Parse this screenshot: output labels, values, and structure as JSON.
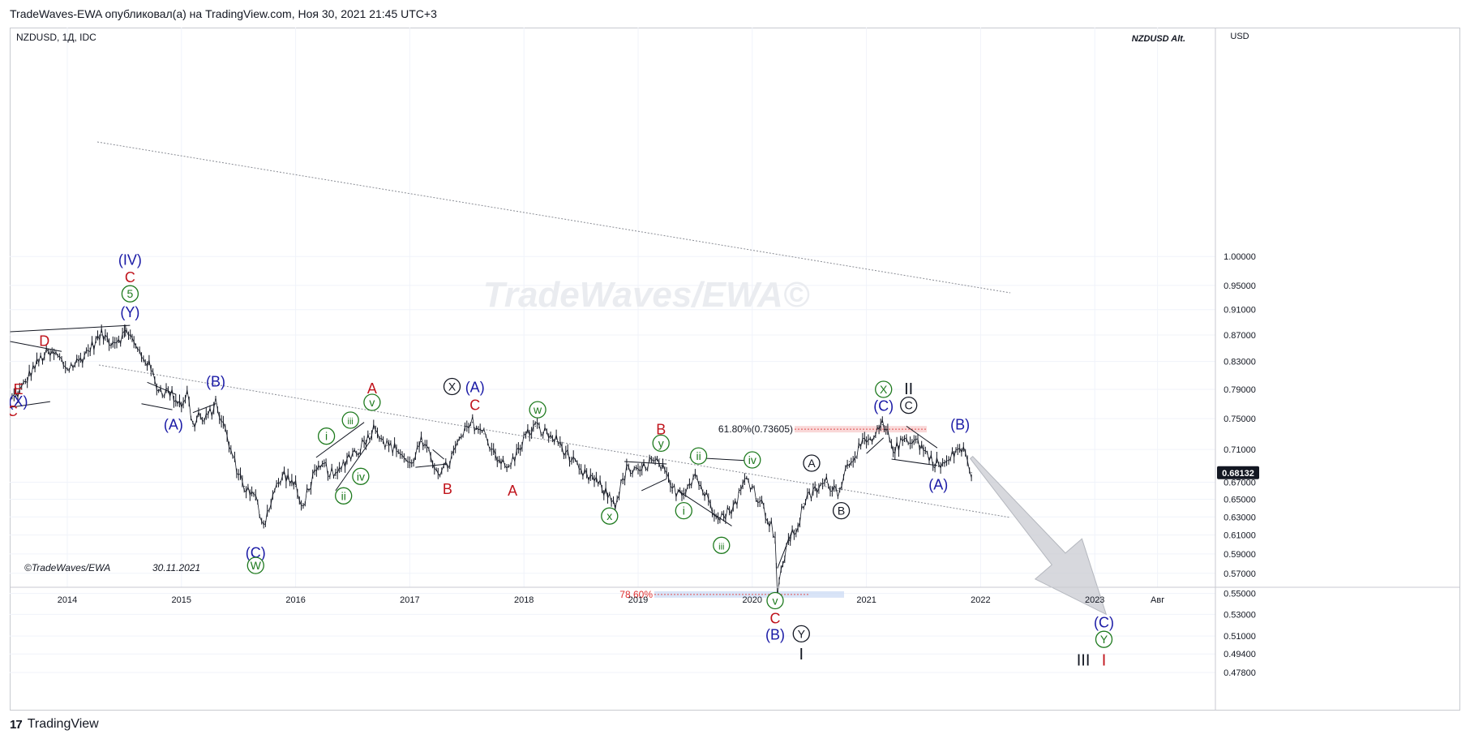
{
  "header": {
    "publisher_line": "TradeWaves-EWA опубликовал(а) на TradingView.com, Ноя 30, 2021 21:45 UTC+3"
  },
  "chart": {
    "symbol_line": "NZDUSD, 1Д, IDC",
    "title_tag": "NZDUSD Alt.",
    "currency": "USD",
    "last_price_label": "0.68132",
    "watermark": "TradeWaves/EWA©",
    "copyright": "©TradeWaves/EWA",
    "date_stamp": "30.11.2021",
    "fib_upper_label": "61.80%(0.73605)",
    "fib_lower_label": "78.60%"
  },
  "footer": {
    "brand": "TradingView",
    "logo_glyph": "17"
  },
  "colors": {
    "blue": "#1a1aa6",
    "red": "#c0141c",
    "green": "#1e7a1e",
    "black": "#131722",
    "grid": "#f0f3fa",
    "price_tag_bg": "#131722",
    "forecast_arrow": "#c9cbd1"
  },
  "chart_data": {
    "type": "line",
    "style": "ohlc-bars",
    "x_axis": {
      "tick_labels": [
        "2014",
        "2015",
        "2016",
        "2017",
        "2018",
        "2019",
        "2020",
        "2021",
        "2022",
        "2023",
        "Авг"
      ],
      "range": [
        2013.5,
        2023.6
      ]
    },
    "y_axis": {
      "scale": "log",
      "tick_labels": [
        "1.00000",
        "0.95000",
        "0.91000",
        "0.87000",
        "0.83000",
        "0.79000",
        "0.75000",
        "0.71000",
        "0.67000",
        "0.65000",
        "0.63000",
        "0.61000",
        "0.59000",
        "0.57000",
        "0.55000",
        "0.53000",
        "0.51000",
        "0.49400",
        "0.47800"
      ],
      "range": [
        0.47,
        1.01
      ]
    },
    "last_price": 0.68132,
    "series": [
      {
        "values": [
          [
            2013.5,
            0.775
          ],
          [
            2013.6,
            0.79
          ],
          [
            2013.7,
            0.82
          ],
          [
            2013.8,
            0.84
          ],
          [
            2013.9,
            0.84
          ],
          [
            2014.0,
            0.82
          ],
          [
            2014.1,
            0.83
          ],
          [
            2014.2,
            0.85
          ],
          [
            2014.3,
            0.87
          ],
          [
            2014.4,
            0.86
          ],
          [
            2014.5,
            0.87
          ],
          [
            2014.52,
            0.88
          ],
          [
            2014.6,
            0.85
          ],
          [
            2014.7,
            0.83
          ],
          [
            2014.8,
            0.79
          ],
          [
            2014.9,
            0.785
          ],
          [
            2015.0,
            0.77
          ],
          [
            2015.05,
            0.785
          ],
          [
            2015.1,
            0.74
          ],
          [
            2015.15,
            0.755
          ],
          [
            2015.2,
            0.745
          ],
          [
            2015.3,
            0.77
          ],
          [
            2015.35,
            0.75
          ],
          [
            2015.45,
            0.7
          ],
          [
            2015.55,
            0.665
          ],
          [
            2015.65,
            0.65
          ],
          [
            2015.72,
            0.622
          ],
          [
            2015.8,
            0.655
          ],
          [
            2015.9,
            0.68
          ],
          [
            2016.0,
            0.665
          ],
          [
            2016.05,
            0.64
          ],
          [
            2016.15,
            0.675
          ],
          [
            2016.25,
            0.69
          ],
          [
            2016.35,
            0.675
          ],
          [
            2016.45,
            0.7
          ],
          [
            2016.55,
            0.71
          ],
          [
            2016.65,
            0.73
          ],
          [
            2016.7,
            0.74
          ],
          [
            2016.8,
            0.715
          ],
          [
            2016.9,
            0.71
          ],
          [
            2017.0,
            0.69
          ],
          [
            2017.1,
            0.72
          ],
          [
            2017.2,
            0.695
          ],
          [
            2017.28,
            0.68
          ],
          [
            2017.35,
            0.695
          ],
          [
            2017.45,
            0.725
          ],
          [
            2017.55,
            0.745
          ],
          [
            2017.65,
            0.73
          ],
          [
            2017.75,
            0.705
          ],
          [
            2017.85,
            0.685
          ],
          [
            2017.92,
            0.7
          ],
          [
            2018.0,
            0.725
          ],
          [
            2018.1,
            0.74
          ],
          [
            2018.2,
            0.73
          ],
          [
            2018.3,
            0.72
          ],
          [
            2018.4,
            0.7
          ],
          [
            2018.5,
            0.68
          ],
          [
            2018.6,
            0.675
          ],
          [
            2018.7,
            0.66
          ],
          [
            2018.8,
            0.645
          ],
          [
            2018.9,
            0.685
          ],
          [
            2019.0,
            0.68
          ],
          [
            2019.1,
            0.695
          ],
          [
            2019.2,
            0.69
          ],
          [
            2019.3,
            0.66
          ],
          [
            2019.4,
            0.66
          ],
          [
            2019.5,
            0.68
          ],
          [
            2019.55,
            0.665
          ],
          [
            2019.65,
            0.64
          ],
          [
            2019.75,
            0.63
          ],
          [
            2019.85,
            0.645
          ],
          [
            2019.95,
            0.675
          ],
          [
            2020.0,
            0.665
          ],
          [
            2020.1,
            0.64
          ],
          [
            2020.2,
            0.61
          ],
          [
            2020.22,
            0.548
          ],
          [
            2020.3,
            0.6
          ],
          [
            2020.4,
            0.62
          ],
          [
            2020.45,
            0.645
          ],
          [
            2020.55,
            0.66
          ],
          [
            2020.65,
            0.67
          ],
          [
            2020.75,
            0.66
          ],
          [
            2020.85,
            0.695
          ],
          [
            2020.95,
            0.715
          ],
          [
            2021.05,
            0.72
          ],
          [
            2021.14,
            0.742
          ],
          [
            2021.25,
            0.71
          ],
          [
            2021.35,
            0.725
          ],
          [
            2021.45,
            0.72
          ],
          [
            2021.55,
            0.7
          ],
          [
            2021.65,
            0.69
          ],
          [
            2021.72,
            0.695
          ],
          [
            2021.8,
            0.712
          ],
          [
            2021.85,
            0.708
          ],
          [
            2021.92,
            0.68132
          ]
        ]
      }
    ],
    "projection": {
      "from": [
        2021.92,
        0.7
      ],
      "to": [
        2023.1,
        0.53
      ]
    },
    "fib_levels": [
      {
        "label": "61.80%(0.73605)",
        "value": 0.73605
      },
      {
        "label": "78.60%",
        "value": 0.549
      }
    ],
    "wave_labels": [
      {
        "text": "(IV)",
        "x": 2014.55,
        "y": 0.995,
        "color": "blue",
        "circle": false
      },
      {
        "text": "C",
        "x": 2014.55,
        "y": 0.965,
        "color": "red",
        "circle": false
      },
      {
        "text": "5",
        "x": 2014.55,
        "y": 0.936,
        "color": "green",
        "circle": true
      },
      {
        "text": "(Y)",
        "x": 2014.55,
        "y": 0.907,
        "color": "blue",
        "circle": false
      },
      {
        "text": "D",
        "x": 2013.8,
        "y": 0.862,
        "color": "red",
        "circle": false
      },
      {
        "text": "E",
        "x": 2013.57,
        "y": 0.791,
        "color": "red",
        "circle": false
      },
      {
        "text": "(X)",
        "x": 2013.57,
        "y": 0.774,
        "color": "blue",
        "circle": false
      },
      {
        "text": "C",
        "x": 2013.52,
        "y": 0.761,
        "color": "red",
        "circle": false
      },
      {
        "text": "(B)",
        "x": 2015.3,
        "y": 0.802,
        "color": "blue",
        "circle": false
      },
      {
        "text": "(A)",
        "x": 2014.93,
        "y": 0.743,
        "color": "blue",
        "circle": false
      },
      {
        "text": "(C)",
        "x": 2015.65,
        "y": 0.592,
        "color": "blue",
        "circle": false
      },
      {
        "text": "W",
        "x": 2015.65,
        "y": 0.578,
        "color": "green",
        "circle": true
      },
      {
        "text": "i",
        "x": 2016.27,
        "y": 0.727,
        "color": "green",
        "circle": true
      },
      {
        "text": "iii",
        "x": 2016.48,
        "y": 0.748,
        "color": "green",
        "circle": true
      },
      {
        "text": "v",
        "x": 2016.67,
        "y": 0.772,
        "color": "green",
        "circle": true
      },
      {
        "text": "iv",
        "x": 2016.57,
        "y": 0.677,
        "color": "green",
        "circle": true
      },
      {
        "text": "ii",
        "x": 2016.42,
        "y": 0.654,
        "color": "green",
        "circle": true
      },
      {
        "text": "A",
        "x": 2016.67,
        "y": 0.792,
        "color": "red",
        "circle": false
      },
      {
        "text": "X",
        "x": 2017.37,
        "y": 0.794,
        "color": "black",
        "circle": true
      },
      {
        "text": "(A)",
        "x": 2017.57,
        "y": 0.794,
        "color": "blue",
        "circle": false
      },
      {
        "text": "C",
        "x": 2017.57,
        "y": 0.769,
        "color": "red",
        "circle": false
      },
      {
        "text": "B",
        "x": 2017.33,
        "y": 0.663,
        "color": "red",
        "circle": false
      },
      {
        "text": "A",
        "x": 2017.9,
        "y": 0.661,
        "color": "red",
        "circle": false
      },
      {
        "text": "w",
        "x": 2018.12,
        "y": 0.762,
        "color": "green",
        "circle": true
      },
      {
        "text": "B",
        "x": 2019.2,
        "y": 0.737,
        "color": "red",
        "circle": false
      },
      {
        "text": "y",
        "x": 2019.2,
        "y": 0.718,
        "color": "green",
        "circle": true
      },
      {
        "text": "x",
        "x": 2018.75,
        "y": 0.631,
        "color": "green",
        "circle": true
      },
      {
        "text": "ii",
        "x": 2019.53,
        "y": 0.702,
        "color": "green",
        "circle": true
      },
      {
        "text": "i",
        "x": 2019.4,
        "y": 0.637,
        "color": "green",
        "circle": true
      },
      {
        "text": "iii",
        "x": 2019.73,
        "y": 0.599,
        "color": "green",
        "circle": true
      },
      {
        "text": "iv",
        "x": 2020.0,
        "y": 0.697,
        "color": "green",
        "circle": true
      },
      {
        "text": "v",
        "x": 2020.2,
        "y": 0.543,
        "color": "green",
        "circle": true
      },
      {
        "text": "C",
        "x": 2020.2,
        "y": 0.527,
        "color": "red",
        "circle": false
      },
      {
        "text": "(B)",
        "x": 2020.2,
        "y": 0.512,
        "color": "blue",
        "circle": false
      },
      {
        "text": "Y",
        "x": 2020.43,
        "y": 0.512,
        "color": "black",
        "circle": true
      },
      {
        "text": "I",
        "x": 2020.43,
        "y": 0.494,
        "color": "black",
        "circle": false
      },
      {
        "text": "A",
        "x": 2020.52,
        "y": 0.693,
        "color": "black",
        "circle": true
      },
      {
        "text": "B",
        "x": 2020.78,
        "y": 0.637,
        "color": "black",
        "circle": true
      },
      {
        "text": "X",
        "x": 2021.15,
        "y": 0.79,
        "color": "green",
        "circle": true
      },
      {
        "text": "II",
        "x": 2021.37,
        "y": 0.791,
        "color": "black",
        "circle": false
      },
      {
        "text": "(C)",
        "x": 2021.15,
        "y": 0.768,
        "color": "blue",
        "circle": false
      },
      {
        "text": "C",
        "x": 2021.37,
        "y": 0.768,
        "color": "black",
        "circle": true
      },
      {
        "text": "(B)",
        "x": 2021.82,
        "y": 0.743,
        "color": "blue",
        "circle": false
      },
      {
        "text": "(A)",
        "x": 2021.63,
        "y": 0.668,
        "color": "blue",
        "circle": false
      },
      {
        "text": "(C)",
        "x": 2023.08,
        "y": 0.523,
        "color": "blue",
        "circle": false
      },
      {
        "text": "Y",
        "x": 2023.08,
        "y": 0.507,
        "color": "green",
        "circle": true
      },
      {
        "text": "III",
        "x": 2022.9,
        "y": 0.489,
        "color": "black",
        "circle": false
      },
      {
        "text": "I",
        "x": 2023.08,
        "y": 0.489,
        "color": "red",
        "circle": false
      }
    ],
    "grid": true
  }
}
